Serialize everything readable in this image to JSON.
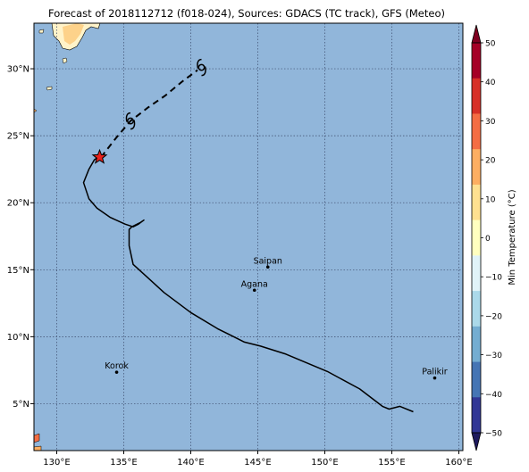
{
  "title": "Forecast of 2018112712 (f018-024), Sources: GDACS (TC track), GFS (Meteo)",
  "map": {
    "lon_range": [
      128.3,
      160.3
    ],
    "lat_range": [
      1.5,
      33.4
    ],
    "lon_ticks": [
      {
        "value": 130,
        "label": "130°E"
      },
      {
        "value": 135,
        "label": "135°E"
      },
      {
        "value": 140,
        "label": "140°E"
      },
      {
        "value": 145,
        "label": "145°E"
      },
      {
        "value": 150,
        "label": "150°E"
      },
      {
        "value": 155,
        "label": "155°E"
      },
      {
        "value": 160,
        "label": "160°E"
      }
    ],
    "lat_ticks": [
      {
        "value": 5,
        "label": "5°N"
      },
      {
        "value": 10,
        "label": "10°N"
      },
      {
        "value": 15,
        "label": "15°N"
      },
      {
        "value": 20,
        "label": "20°N"
      },
      {
        "value": 25,
        "label": "25°N"
      },
      {
        "value": 30,
        "label": "30°N"
      }
    ],
    "grid": true,
    "ocean_color": "#91b6da",
    "cities": [
      {
        "name": "Saipan",
        "lon": 145.75,
        "lat": 15.2
      },
      {
        "name": "Agana",
        "lon": 144.75,
        "lat": 13.47
      },
      {
        "name": "Korok",
        "lon": 134.47,
        "lat": 7.35
      },
      {
        "name": "Palikir",
        "lon": 158.2,
        "lat": 6.92
      }
    ],
    "past_track": [
      [
        156.6,
        4.4
      ],
      [
        155.6,
        4.8
      ],
      [
        154.8,
        4.6
      ],
      [
        154.3,
        4.8
      ],
      [
        152.6,
        6.1
      ],
      [
        150.2,
        7.4
      ],
      [
        147.1,
        8.7
      ],
      [
        145.2,
        9.3
      ],
      [
        144.0,
        9.6
      ],
      [
        142.0,
        10.6
      ],
      [
        140.0,
        11.8
      ],
      [
        138.0,
        13.3
      ],
      [
        136.8,
        14.4
      ],
      [
        135.7,
        15.4
      ],
      [
        135.4,
        16.8
      ],
      [
        135.4,
        18.0
      ],
      [
        135.6,
        18.2
      ],
      [
        136.2,
        18.5
      ],
      [
        136.5,
        18.7
      ],
      [
        136.1,
        18.4
      ],
      [
        135.7,
        18.2
      ],
      [
        135.1,
        18.4
      ],
      [
        134.0,
        18.9
      ],
      [
        133.0,
        19.6
      ],
      [
        132.4,
        20.3
      ],
      [
        132.0,
        21.5
      ],
      [
        132.4,
        22.5
      ],
      [
        132.8,
        23.2
      ],
      [
        133.2,
        23.5
      ]
    ],
    "forecast_track": [
      [
        133.3,
        23.4
      ],
      [
        134.4,
        24.8
      ],
      [
        135.5,
        26.1
      ],
      [
        136.8,
        27.1
      ],
      [
        138.1,
        28.0
      ],
      [
        139.3,
        29.0
      ],
      [
        140.5,
        29.9
      ]
    ],
    "current_position": {
      "lon": 133.2,
      "lat": 23.4
    },
    "storm_symbols": [
      {
        "lon": 135.5,
        "lat": 26.1
      },
      {
        "lon": 140.8,
        "lat": 30.1
      }
    ]
  },
  "colorbar": {
    "label": "Min Temperature (°C)",
    "range": [
      -50,
      50
    ],
    "ticks": [
      {
        "value": 50,
        "label": "50"
      },
      {
        "value": 40,
        "label": "40"
      },
      {
        "value": 30,
        "label": "30"
      },
      {
        "value": 20,
        "label": "20"
      },
      {
        "value": 10,
        "label": "10"
      },
      {
        "value": 0,
        "label": "0"
      },
      {
        "value": -10,
        "label": "−10"
      },
      {
        "value": -20,
        "label": "−20"
      },
      {
        "value": -30,
        "label": "−30"
      },
      {
        "value": -40,
        "label": "−40"
      },
      {
        "value": -50,
        "label": "−50"
      }
    ],
    "bands_top_to_bottom": [
      "#a50026",
      "#d73027",
      "#f46d43",
      "#fdae61",
      "#fee090",
      "#ffffbf",
      "#e0f3f8",
      "#abd9e9",
      "#74add1",
      "#4575b4",
      "#313695"
    ],
    "extend_max_color": "#7f0020",
    "extend_min_color": "#1e1a5e"
  }
}
